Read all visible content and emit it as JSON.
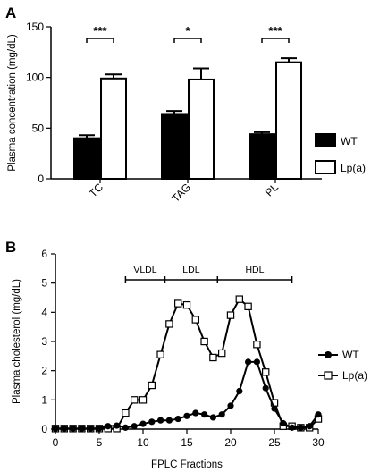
{
  "chart_data": [
    {
      "panel": "A",
      "type": "bar",
      "categories": [
        "TC",
        "TAG",
        "PL"
      ],
      "ylabel": "Plasma concentration (mg/dL)",
      "ylim": [
        0,
        150
      ],
      "yticks": [
        0,
        50,
        100,
        150
      ],
      "series": [
        {
          "name": "WT",
          "values": [
            40,
            64,
            44
          ],
          "errors": [
            3,
            3,
            2
          ],
          "color": "#000000"
        },
        {
          "name": "Lp(a)",
          "values": [
            99,
            98,
            115
          ],
          "errors": [
            4,
            11,
            4
          ],
          "color": "#ffffff"
        }
      ],
      "significance": [
        {
          "category": "TC",
          "label": "***"
        },
        {
          "category": "TAG",
          "label": "*"
        },
        {
          "category": "PL",
          "label": "***"
        }
      ],
      "legend_placement": "right"
    },
    {
      "panel": "B",
      "type": "line",
      "xlabel": "FPLC Fractions",
      "ylabel": "Plasma cholesterol (mg/dL)",
      "xlim": [
        0,
        30
      ],
      "ylim": [
        0,
        6
      ],
      "xticks": [
        0,
        5,
        10,
        15,
        20,
        25,
        30
      ],
      "yticks": [
        0,
        1,
        2,
        3,
        4,
        5,
        6
      ],
      "x": [
        0,
        1,
        2,
        3,
        4,
        5,
        6,
        7,
        8,
        9,
        10,
        11,
        12,
        13,
        14,
        15,
        16,
        17,
        18,
        19,
        20,
        21,
        22,
        23,
        24,
        25,
        26,
        27,
        28,
        29,
        30
      ],
      "series": [
        {
          "name": "WT",
          "marker": "circle",
          "values": [
            0.02,
            0.02,
            0.02,
            0.02,
            0.02,
            0.03,
            0.1,
            0.12,
            0.05,
            0.1,
            0.18,
            0.25,
            0.3,
            0.3,
            0.35,
            0.45,
            0.55,
            0.5,
            0.4,
            0.5,
            0.8,
            1.3,
            2.3,
            2.3,
            1.4,
            0.7,
            0.2,
            0.05,
            0.05,
            0.1,
            0.5
          ]
        },
        {
          "name": "Lp(a)",
          "marker": "square",
          "values": [
            0.02,
            0.02,
            0.02,
            0.02,
            0.02,
            0.02,
            0.02,
            0.02,
            0.55,
            1.0,
            1.0,
            1.5,
            2.55,
            3.6,
            4.3,
            4.25,
            3.75,
            3.0,
            2.45,
            2.6,
            3.9,
            4.45,
            4.2,
            2.9,
            1.95,
            0.9,
            0.1,
            0.1,
            0.05,
            0.05,
            0.35
          ]
        }
      ],
      "regions": [
        {
          "label": "VLDL",
          "from": 8,
          "to": 12.5
        },
        {
          "label": "LDL",
          "from": 12.5,
          "to": 18.5
        },
        {
          "label": "HDL",
          "from": 18.5,
          "to": 27
        }
      ],
      "legend_placement": "right"
    }
  ]
}
